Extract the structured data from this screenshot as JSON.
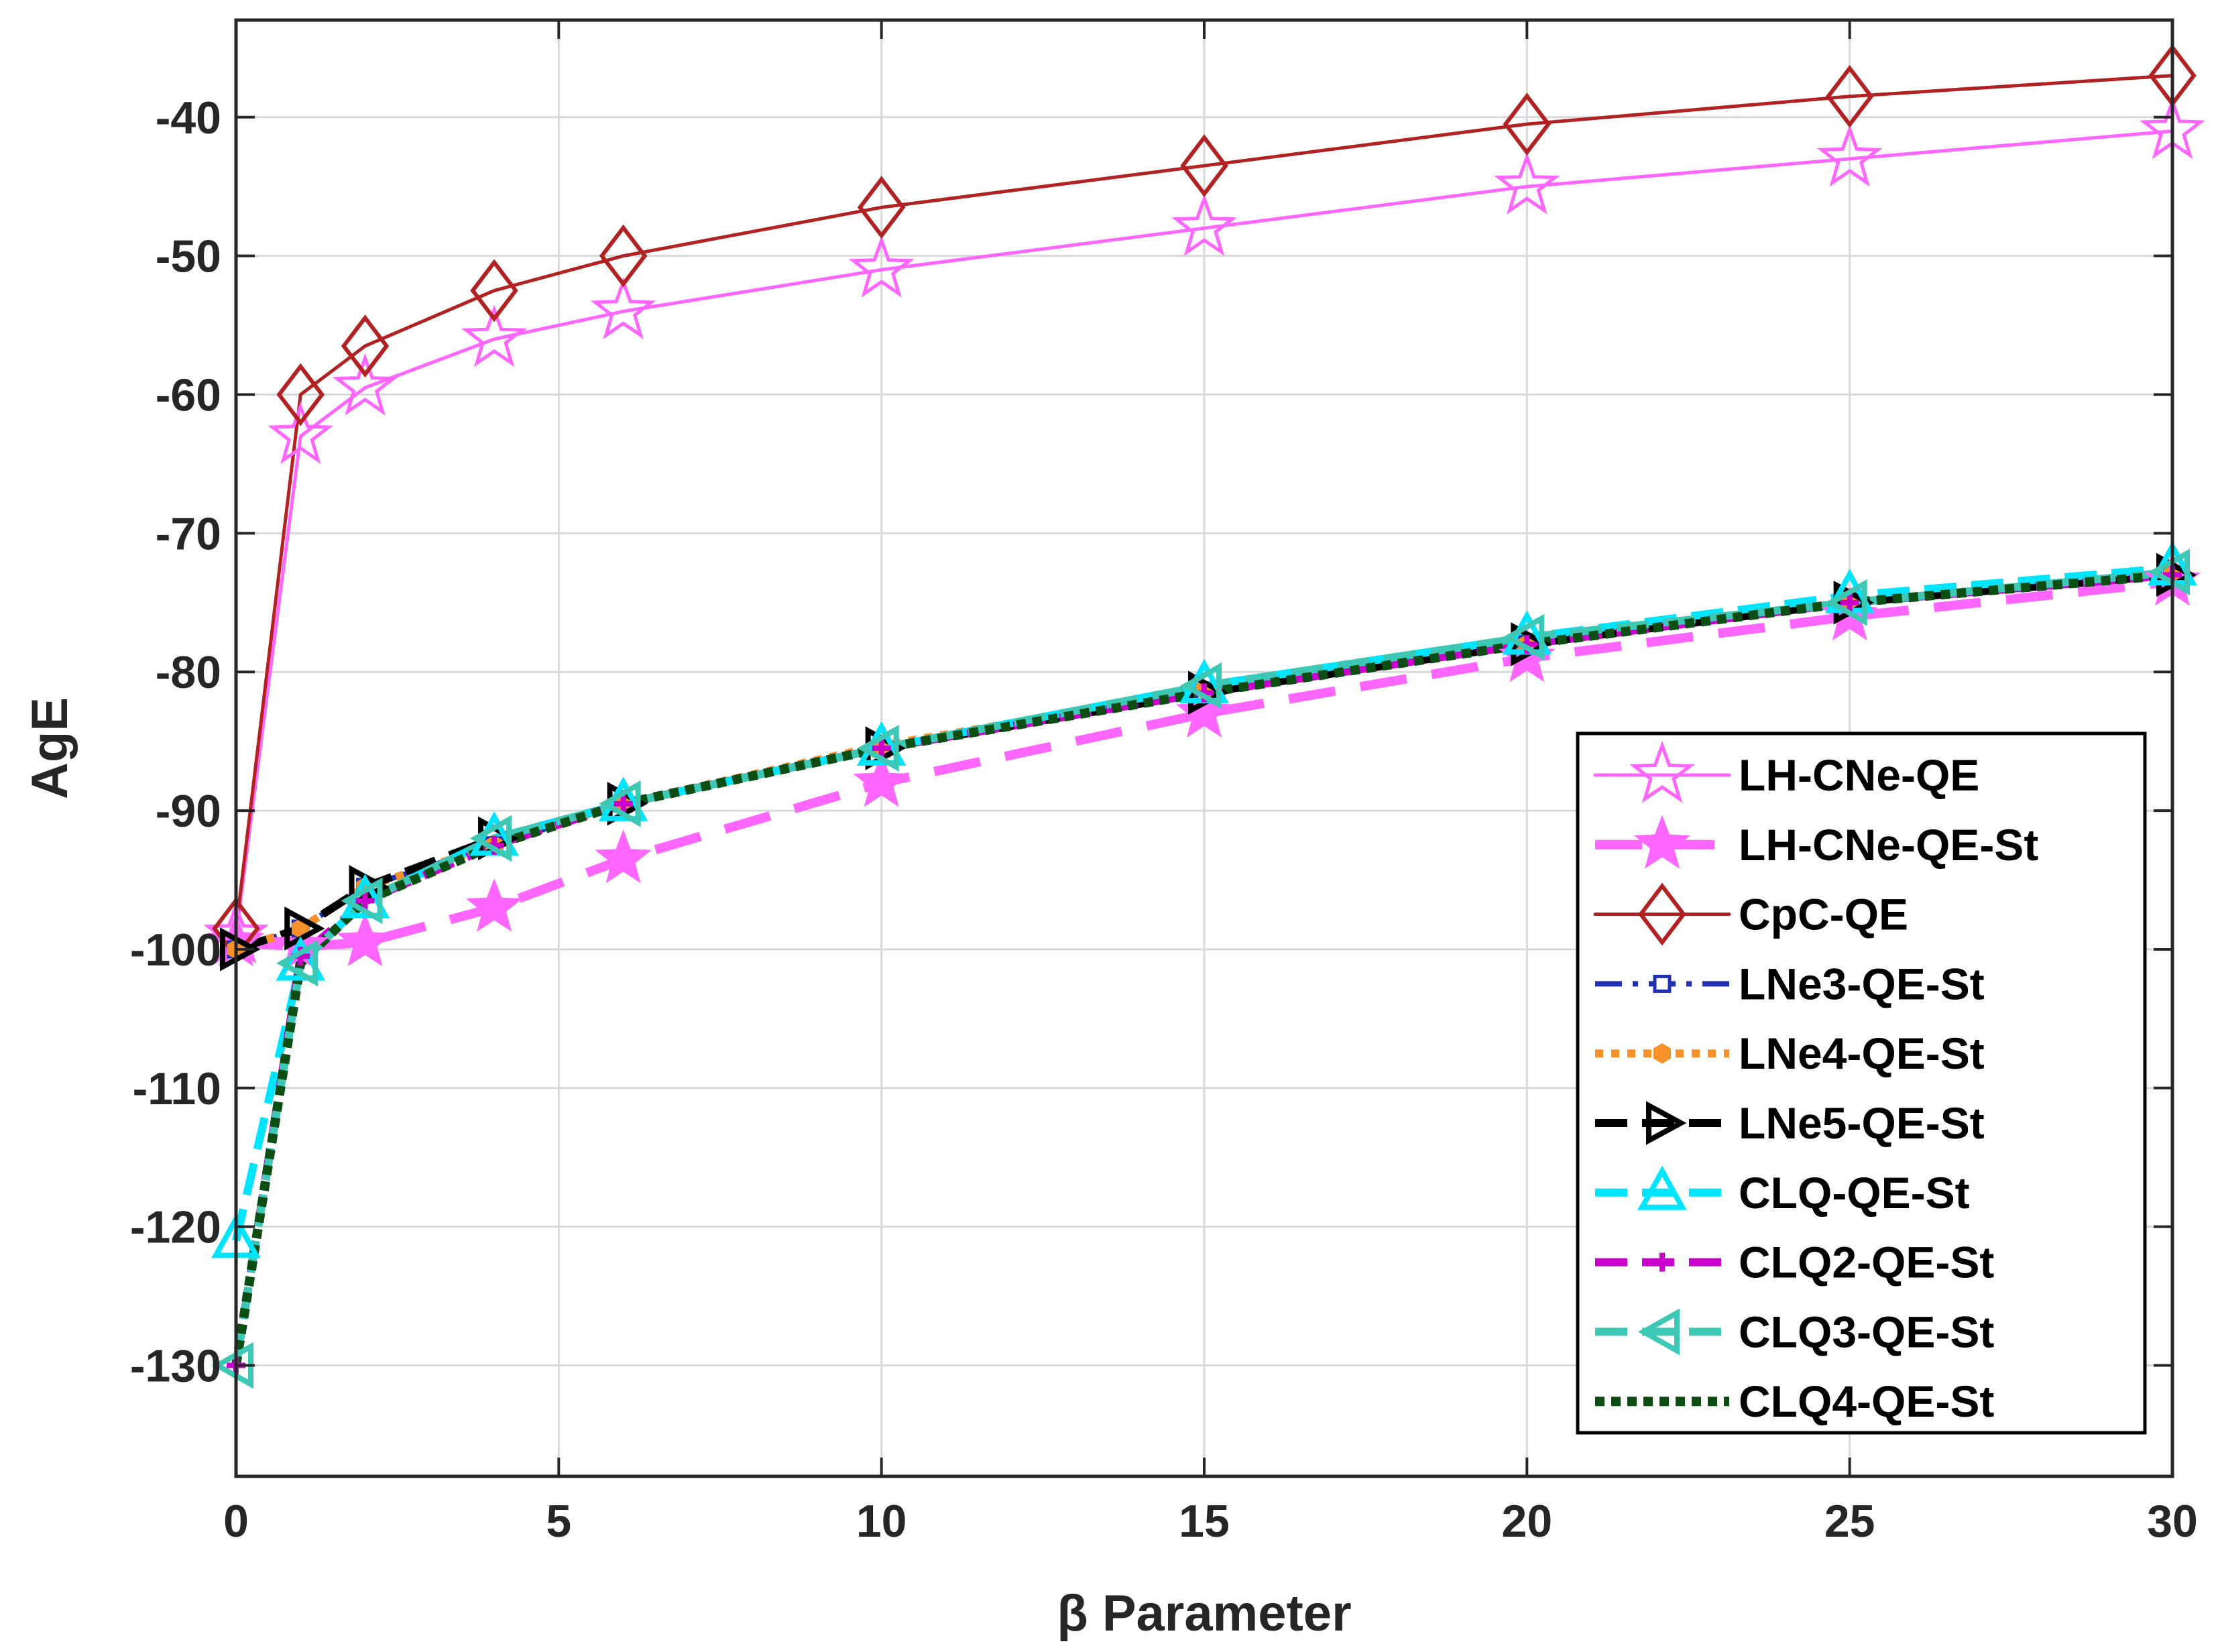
{
  "chart_data": {
    "type": "line",
    "title": "",
    "xlabel": "β Parameter",
    "ylabel": "AgE",
    "xlim": [
      0,
      30
    ],
    "ylim": [
      -138,
      -33
    ],
    "xticks": [
      0,
      5,
      10,
      15,
      20,
      25,
      30
    ],
    "xtick_labels": [
      "0",
      "5",
      "10",
      "15",
      "20",
      "25",
      "30"
    ],
    "yticks": [
      -130,
      -120,
      -110,
      -100,
      -90,
      -80,
      -70,
      -60,
      -50,
      -40
    ],
    "ytick_labels": [
      "-130",
      "-120",
      "-110",
      "-100",
      "-90",
      "-80",
      "-70",
      "-60",
      "-50",
      "-40"
    ],
    "grid": true,
    "legend_position": "lower-right",
    "x": [
      0,
      1,
      2,
      4,
      6,
      10,
      15,
      20,
      25,
      30
    ],
    "series": [
      {
        "name": "LH-CNe-QE",
        "color": "#FF66FF",
        "line": "solid",
        "marker": "star-open",
        "values": [
          -99,
          -63,
          -59.5,
          -56,
          -54,
          -51,
          -48,
          -45,
          -43,
          -41
        ]
      },
      {
        "name": "LH-CNe-QE-St",
        "color": "#FF66FF",
        "line": "dashed-thick",
        "marker": "star-filled",
        "values": [
          -99.5,
          -99.8,
          -99.5,
          -97,
          -93.5,
          -88,
          -83,
          -79,
          -76,
          -73.5
        ]
      },
      {
        "name": "CpC-QE",
        "color": "#B22222",
        "line": "solid",
        "marker": "diamond-open",
        "values": [
          -98.5,
          -60,
          -56.5,
          -52.5,
          -50,
          -46.5,
          -43.5,
          -40.5,
          -38.5,
          -37
        ]
      },
      {
        "name": "LNe3-QE-St",
        "color": "#1F2FB0",
        "line": "dashdot",
        "marker": "square-open",
        "values": [
          -100,
          -98.5,
          -95.5,
          -92.5,
          -89.5,
          -85.5,
          -81.5,
          -78,
          -75,
          -73
        ]
      },
      {
        "name": "LNe4-QE-St",
        "color": "#F7922B",
        "line": "dotted",
        "marker": "hexagon-filled",
        "values": [
          -100,
          -98.5,
          -95.5,
          -92.5,
          -89.5,
          -85.3,
          -81.3,
          -78,
          -75,
          -73
        ]
      },
      {
        "name": "LNe5-QE-St",
        "color": "#000000",
        "line": "dashed",
        "marker": "triangle-right-open",
        "values": [
          -100,
          -98.5,
          -95.5,
          -92,
          -89.5,
          -85.5,
          -81.5,
          -78,
          -75,
          -73
        ]
      },
      {
        "name": "CLQ-QE-St",
        "color": "#00E5FF",
        "line": "dashed",
        "marker": "triangle-up-open",
        "values": [
          -121,
          -101,
          -96.5,
          -92,
          -89.5,
          -85.5,
          -81,
          -77.5,
          -74.5,
          -72.5
        ]
      },
      {
        "name": "CLQ2-QE-St",
        "color": "#CC00CC",
        "line": "dashed",
        "marker": "plus",
        "values": [
          -130,
          -100.5,
          -96.5,
          -92.5,
          -89.5,
          -85.5,
          -81.5,
          -78,
          -75,
          -73
        ]
      },
      {
        "name": "CLQ3-QE-St",
        "color": "#3CC8B4",
        "line": "dashed",
        "marker": "triangle-left-open",
        "values": [
          -130,
          -101,
          -96.5,
          -92,
          -89.5,
          -85.5,
          -81,
          -77.5,
          -75,
          -72.8
        ]
      },
      {
        "name": "CLQ4-QE-St",
        "color": "#0B4D12",
        "line": "dotted-thick",
        "marker": "none",
        "values": [
          -130,
          -101,
          -96.5,
          -92.5,
          -89.5,
          -85.5,
          -81.5,
          -78,
          -75,
          -73
        ]
      }
    ]
  }
}
